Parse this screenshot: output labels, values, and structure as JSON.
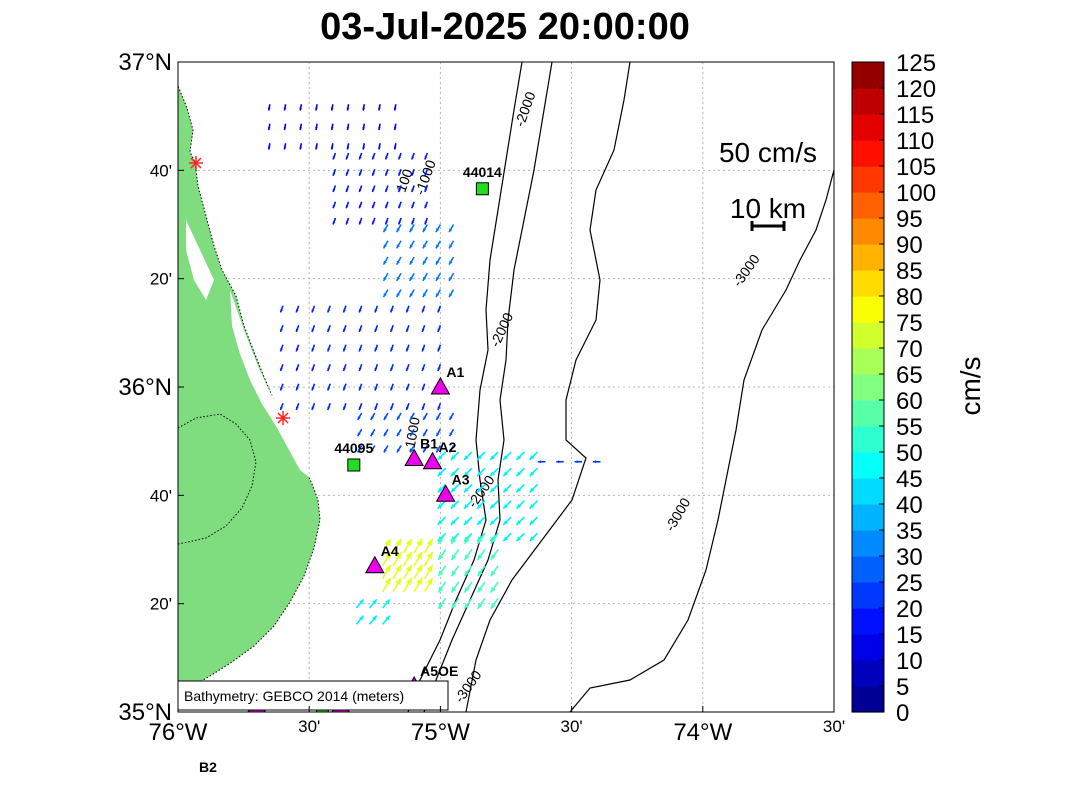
{
  "title": "03-Jul-2025 20:00:00",
  "map": {
    "lon_range": [
      -76.0,
      -73.5
    ],
    "lat_range": [
      35.0,
      37.0
    ],
    "x_ticks": [
      {
        "lon": -76.0,
        "label": "76°W",
        "major": true
      },
      {
        "lon": -75.5,
        "label": "30'",
        "major": false
      },
      {
        "lon": -75.0,
        "label": "75°W",
        "major": true
      },
      {
        "lon": -74.5,
        "label": "30'",
        "major": false
      },
      {
        "lon": -74.0,
        "label": "74°W",
        "major": true
      },
      {
        "lon": -73.5,
        "label": "30'",
        "major": false
      }
    ],
    "y_ticks": [
      {
        "lat": 37.0,
        "label": "37°N",
        "major": true
      },
      {
        "lat": 36.6667,
        "label": "40'",
        "major": false
      },
      {
        "lat": 36.3333,
        "label": "20'",
        "major": false
      },
      {
        "lat": 36.0,
        "label": "36°N",
        "major": true
      },
      {
        "lat": 35.6667,
        "label": "40'",
        "major": false
      },
      {
        "lat": 35.3333,
        "label": "20'",
        "major": false
      },
      {
        "lat": 35.0,
        "label": "35°N",
        "major": true
      }
    ],
    "bathymetry_note": "Bathymetry: GEBCO 2014 (meters)",
    "contour_labels": [
      {
        "text": "100",
        "lon": -75.12,
        "lat": 36.63,
        "angle": -70
      },
      {
        "text": "-1000",
        "lon": -75.04,
        "lat": 36.64,
        "angle": -70
      },
      {
        "text": "-2000",
        "lon": -74.66,
        "lat": 36.85,
        "angle": -70
      },
      {
        "text": "-2000",
        "lon": -74.75,
        "lat": 36.17,
        "angle": -65
      },
      {
        "text": "-1000",
        "lon": -75.09,
        "lat": 35.85,
        "angle": -80
      },
      {
        "text": "-2000",
        "lon": -74.83,
        "lat": 35.67,
        "angle": -55
      },
      {
        "text": "-3000",
        "lon": -73.82,
        "lat": 36.35,
        "angle": -55
      },
      {
        "text": "-3000",
        "lon": -74.08,
        "lat": 35.6,
        "angle": -60
      },
      {
        "text": "-3000",
        "lon": -74.88,
        "lat": 35.07,
        "angle": -55
      }
    ],
    "reference_vector_label": "50 cm/s",
    "scale_bar_label": "10 km",
    "stations": [
      {
        "name": "44014",
        "type": "buoy",
        "lon": -74.84,
        "lat": 36.61
      },
      {
        "name": "44095",
        "type": "buoy",
        "lon": -75.33,
        "lat": 35.76
      },
      {
        "name": "A1",
        "type": "mooring",
        "lon": -75.0,
        "lat": 36.0
      },
      {
        "name": "A2",
        "type": "mooring",
        "lon": -75.03,
        "lat": 35.77
      },
      {
        "name": "A3",
        "type": "mooring",
        "lon": -74.98,
        "lat": 35.67
      },
      {
        "name": "A4",
        "type": "mooring",
        "lon": -75.25,
        "lat": 35.45
      },
      {
        "name": "B1",
        "type": "mooring",
        "lon": -75.1,
        "lat": 35.78
      },
      {
        "name": "A5OE",
        "type": "mooring",
        "lon": -75.1,
        "lat": 35.08
      }
    ],
    "offmap_label": "B2",
    "land_color": "#7fdc7f",
    "buoy_color": "#22dd22",
    "mooring_color": "#ee00ee"
  },
  "colorbar": {
    "label": "cm/s",
    "min": 0,
    "max": 125,
    "step": 5,
    "tick_labels": [
      "0",
      "5",
      "10",
      "15",
      "20",
      "25",
      "30",
      "35",
      "40",
      "45",
      "50",
      "55",
      "60",
      "65",
      "70",
      "75",
      "80",
      "85",
      "90",
      "95",
      "100",
      "105",
      "110",
      "115",
      "120",
      "125"
    ],
    "colormap": "jet"
  },
  "vector_fields": [
    {
      "lon_range": [
        -75.65,
        -75.17
      ],
      "lat_range": [
        36.75,
        36.92
      ],
      "step": 0.06,
      "speed": 15,
      "dir_deg": 190
    },
    {
      "lon_range": [
        -75.4,
        -75.05
      ],
      "lat_range": [
        36.52,
        36.72
      ],
      "step": 0.05,
      "speed": 18,
      "dir_deg": 200
    },
    {
      "lon_range": [
        -75.2,
        -74.92
      ],
      "lat_range": [
        36.3,
        36.52
      ],
      "step": 0.05,
      "speed": 30,
      "dir_deg": 210
    },
    {
      "lon_range": [
        -75.6,
        -74.95
      ],
      "lat_range": [
        35.95,
        36.3
      ],
      "step": 0.06,
      "speed": 20,
      "dir_deg": 200
    },
    {
      "lon_range": [
        -75.3,
        -74.93
      ],
      "lat_range": [
        35.82,
        35.95
      ],
      "step": 0.05,
      "speed": 25,
      "dir_deg": 210
    },
    {
      "lon_range": [
        -74.98,
        -74.6
      ],
      "lat_range": [
        35.55,
        35.82
      ],
      "step": 0.05,
      "speed": 45,
      "dir_deg": 225
    },
    {
      "lon_range": [
        -74.98,
        -74.75
      ],
      "lat_range": [
        35.35,
        35.55
      ],
      "step": 0.05,
      "speed": 55,
      "dir_deg": 215
    },
    {
      "lon_range": [
        -75.22,
        -75.05
      ],
      "lat_range": [
        35.37,
        35.5
      ],
      "step": 0.04,
      "speed": 75,
      "dir_deg": 30
    },
    {
      "lon_range": [
        -75.32,
        -75.22
      ],
      "lat_range": [
        35.27,
        35.36
      ],
      "step": 0.05,
      "speed": 45,
      "dir_deg": 40
    },
    {
      "lon_range": [
        -74.6,
        -74.35
      ],
      "lat_range": [
        35.77,
        35.77
      ],
      "step": 0.07,
      "speed": 22,
      "dir_deg": 270
    }
  ]
}
